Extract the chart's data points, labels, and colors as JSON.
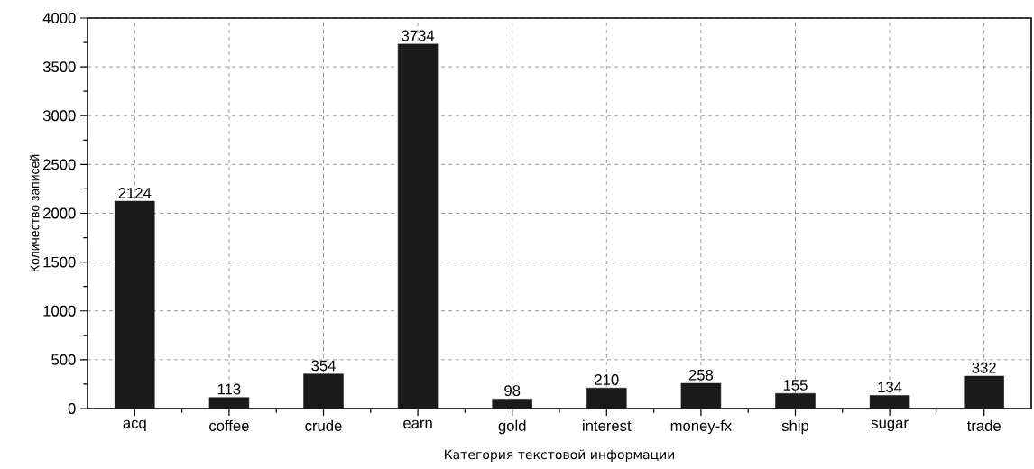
{
  "chart_data": {
    "type": "bar",
    "xlabel": "Категория текстовой информации",
    "ylabel": "Количество записей",
    "categories": [
      "acq",
      "coffee",
      "crude",
      "earn",
      "gold",
      "interest",
      "money-fx",
      "ship",
      "sugar",
      "trade"
    ],
    "values": [
      2124,
      113,
      354,
      3734,
      98,
      210,
      258,
      155,
      134,
      332
    ],
    "color": "#1a1a1a",
    "ylim": [
      0,
      4000
    ],
    "yticks": [
      0,
      500,
      1000,
      1500,
      2000,
      2500,
      3000,
      3500,
      4000
    ],
    "grid": true,
    "data_labels": true
  }
}
